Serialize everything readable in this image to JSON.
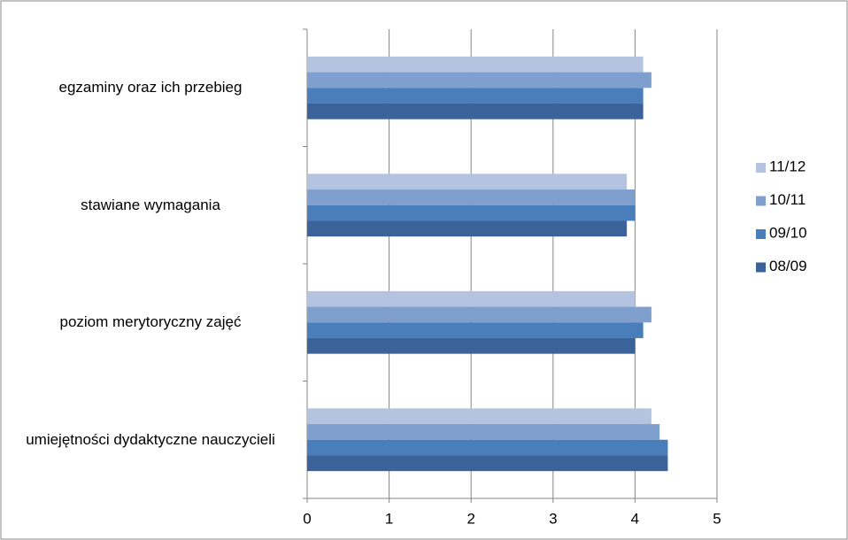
{
  "chart_data": {
    "type": "bar",
    "orientation": "horizontal",
    "categories": [
      "umiejętności dydaktyczne nauczycieli",
      "poziom merytoryczny zajęć",
      "stawiane wymagania",
      "egzaminy oraz ich przebieg"
    ],
    "series": [
      {
        "name": "11/12",
        "color": "#b3c3e0",
        "values": [
          4.2,
          4.0,
          3.9,
          4.1
        ]
      },
      {
        "name": "10/11",
        "color": "#7f9fcf",
        "values": [
          4.3,
          4.2,
          4.0,
          4.2
        ]
      },
      {
        "name": "09/10",
        "color": "#4a7ebb",
        "values": [
          4.4,
          4.1,
          4.0,
          4.1
        ]
      },
      {
        "name": "08/09",
        "color": "#3b6299",
        "values": [
          4.4,
          4.0,
          3.9,
          4.1
        ]
      }
    ],
    "xlim": [
      0,
      5
    ],
    "xticks": [
      0,
      1,
      2,
      3,
      4,
      5
    ],
    "grid": true,
    "legend": "right"
  }
}
